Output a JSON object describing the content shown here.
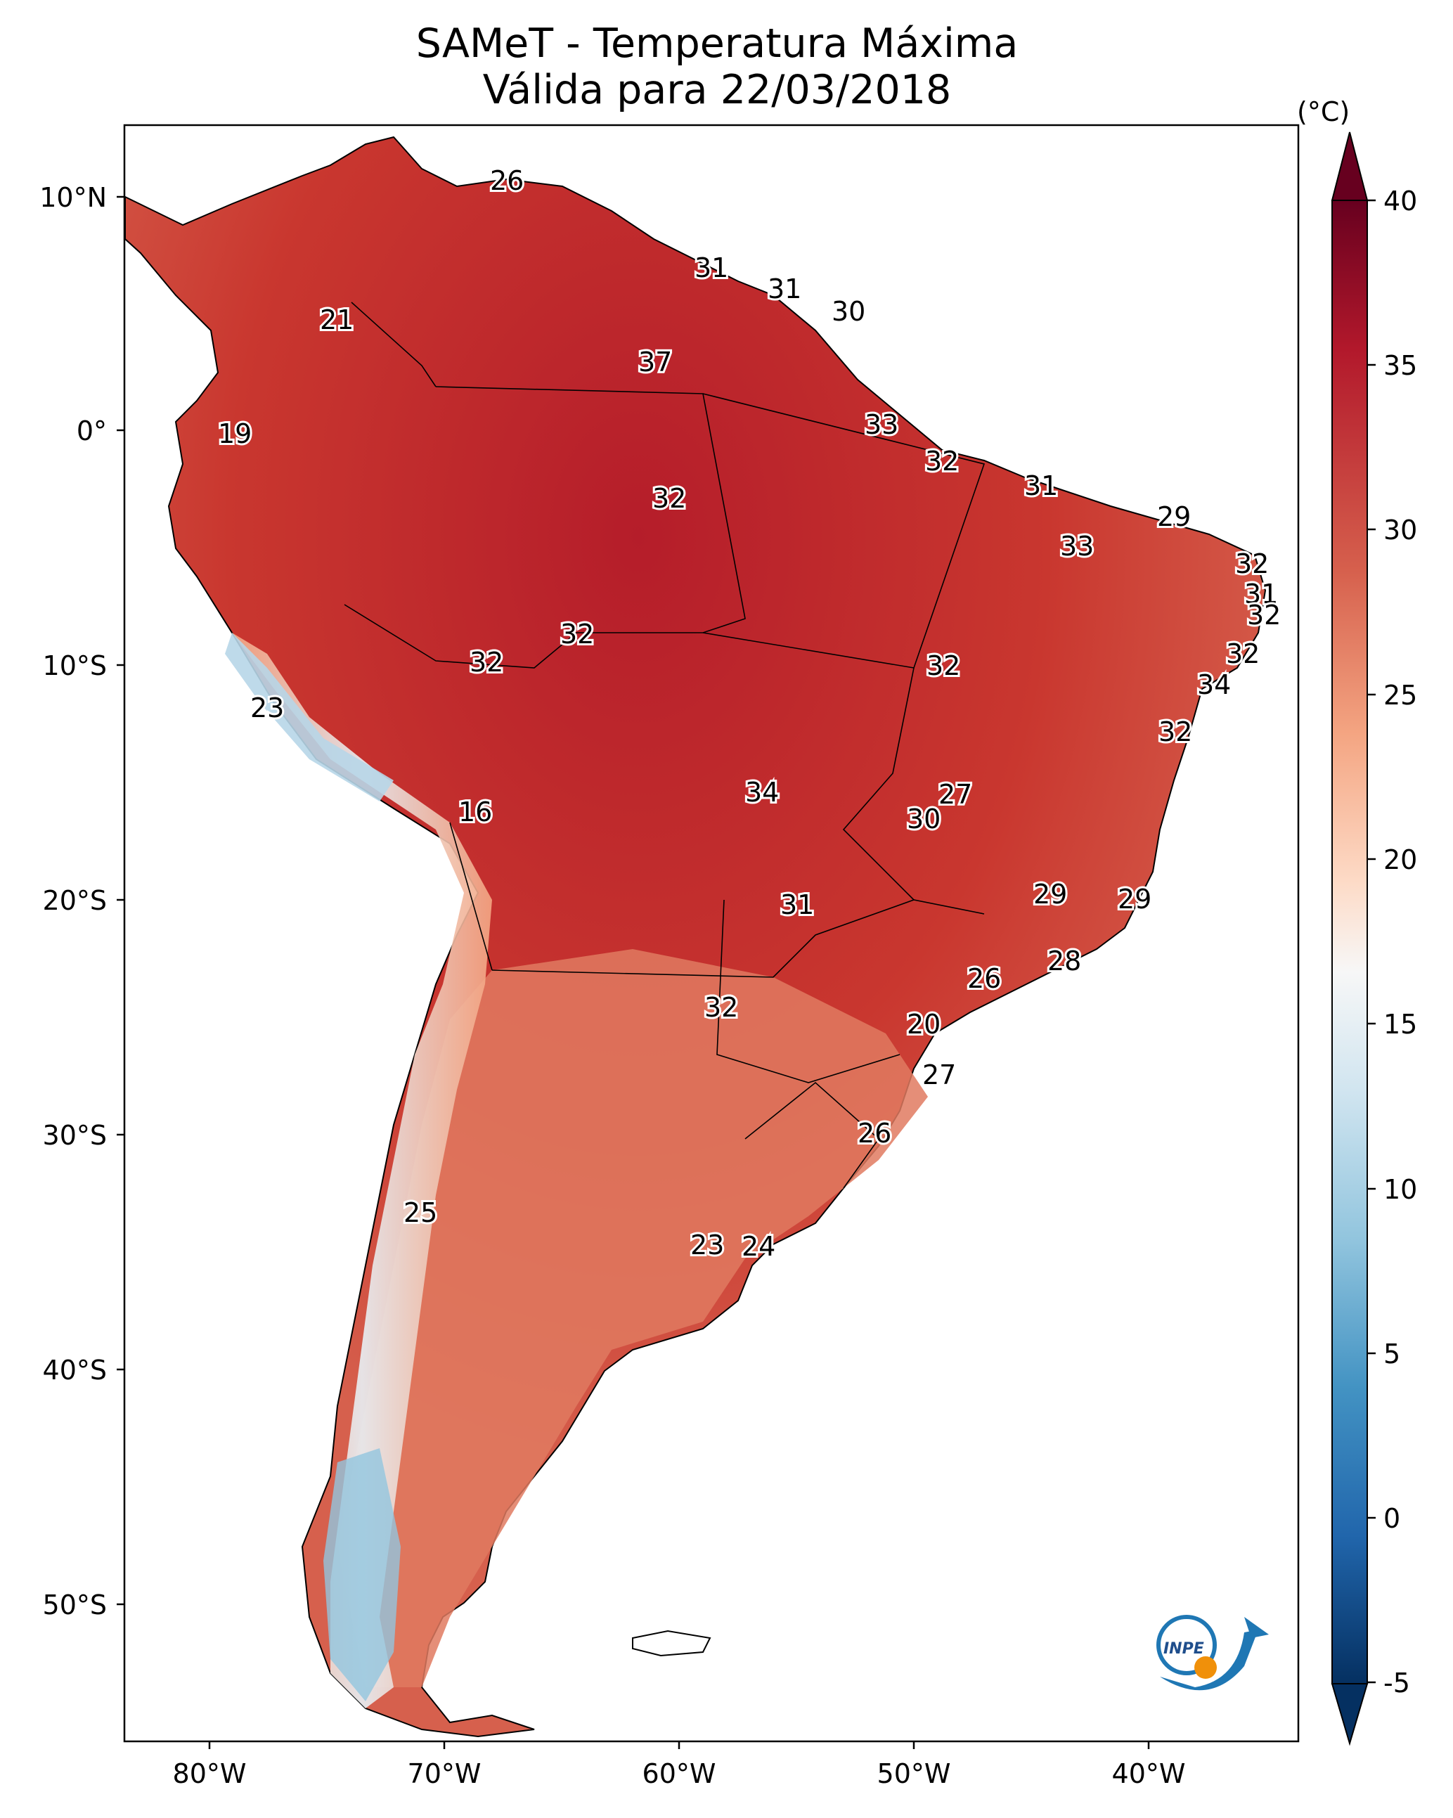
{
  "title": {
    "line1": "SAMeT - Temperatura Máxima",
    "line2": "Válida para 22/03/2018"
  },
  "colorbar": {
    "unit_label": "(°C)",
    "ticks": [
      "40",
      "35",
      "30",
      "25",
      "20",
      "15",
      "10",
      "5",
      "0",
      "-5"
    ],
    "colors_top_to_bottom": [
      "#67001f",
      "#b2182b",
      "#d6604d",
      "#f4a582",
      "#fddbc7",
      "#f7f7f7",
      "#d1e5f0",
      "#92c5de",
      "#4393c3",
      "#2166ac",
      "#053061"
    ]
  },
  "axes": {
    "lat_labels": [
      "10°N",
      "0°",
      "10°S",
      "20°S",
      "30°S",
      "40°S",
      "50°S"
    ],
    "lon_labels": [
      "80°W",
      "70°W",
      "60°W",
      "50°W",
      "40°W"
    ]
  },
  "map_labels": [
    "26",
    "31",
    "31",
    "30",
    "21",
    "37",
    "19",
    "33",
    "32",
    "32",
    "31",
    "29",
    "33",
    "32",
    "31",
    "32",
    "32",
    "32",
    "32",
    "32",
    "23",
    "32",
    "34",
    "16",
    "34",
    "27",
    "30",
    "32",
    "29",
    "31",
    "29",
    "28",
    "26",
    "32",
    "20",
    "27",
    "26",
    "25",
    "23",
    "24"
  ],
  "logo": {
    "text": "INPE"
  }
}
